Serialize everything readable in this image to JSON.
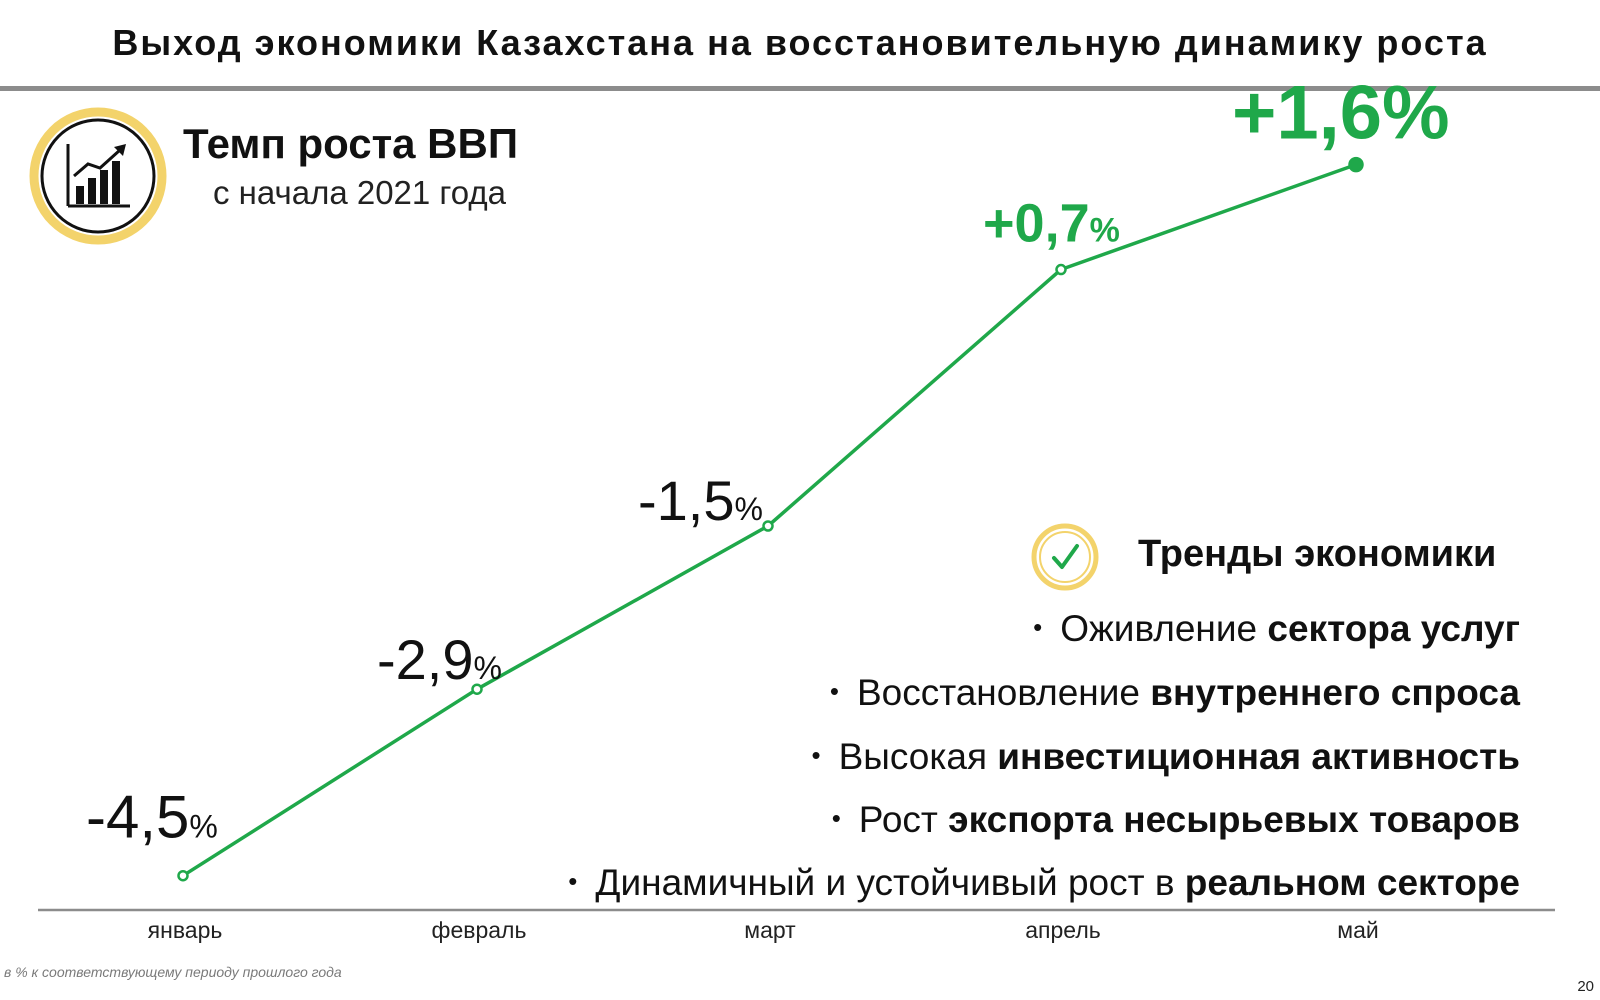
{
  "header": {
    "title": "Выход экономики Казахстана на восстановительную динамику роста"
  },
  "gdp": {
    "title": "Темп роста ВВП",
    "subtitle": "с начала 2021 года",
    "icon": "growth-chart-icon"
  },
  "chart_data": {
    "type": "line",
    "title": "",
    "xlabel": "",
    "ylabel": "",
    "categories": [
      "январь",
      "февраль",
      "март",
      "апрель",
      "май"
    ],
    "values": [
      -4.5,
      -2.9,
      -1.5,
      0.7,
      1.6
    ],
    "value_labels": [
      {
        "num": "-4,5",
        "unit": "%"
      },
      {
        "num": "-2,9",
        "unit": "%"
      },
      {
        "num": "-1,5",
        "unit": "%"
      },
      {
        "num": "+0,7",
        "unit": "%"
      },
      {
        "num": "+1,6%",
        "unit": ""
      }
    ],
    "ylim": [
      -5,
      2
    ],
    "grid": false,
    "legend": "none",
    "colors": {
      "line": "#1fa84a",
      "positive_label": "#1fa84a",
      "negative_label": "#111111",
      "axis": "#8c8c8c"
    }
  },
  "trends": {
    "title": "Тренды экономики",
    "icon": "check-circle-icon",
    "items": [
      {
        "normal": "Оживление ",
        "bold": "сектора услуг"
      },
      {
        "normal": "Восстановление ",
        "bold": "внутреннего спроса"
      },
      {
        "normal": "Высокая ",
        "bold": "инвестиционная активность"
      },
      {
        "normal": "Рост ",
        "bold": "экспорта несырьевых товаров"
      },
      {
        "normal": "Динамичный и устойчивый рост в ",
        "bold": "реальном секторе"
      }
    ]
  },
  "footnote": "в % к соответствующему периоду прошлого года",
  "page_number": "20",
  "accent_colors": {
    "gold": "#f3d36b",
    "green": "#1fa84a"
  }
}
